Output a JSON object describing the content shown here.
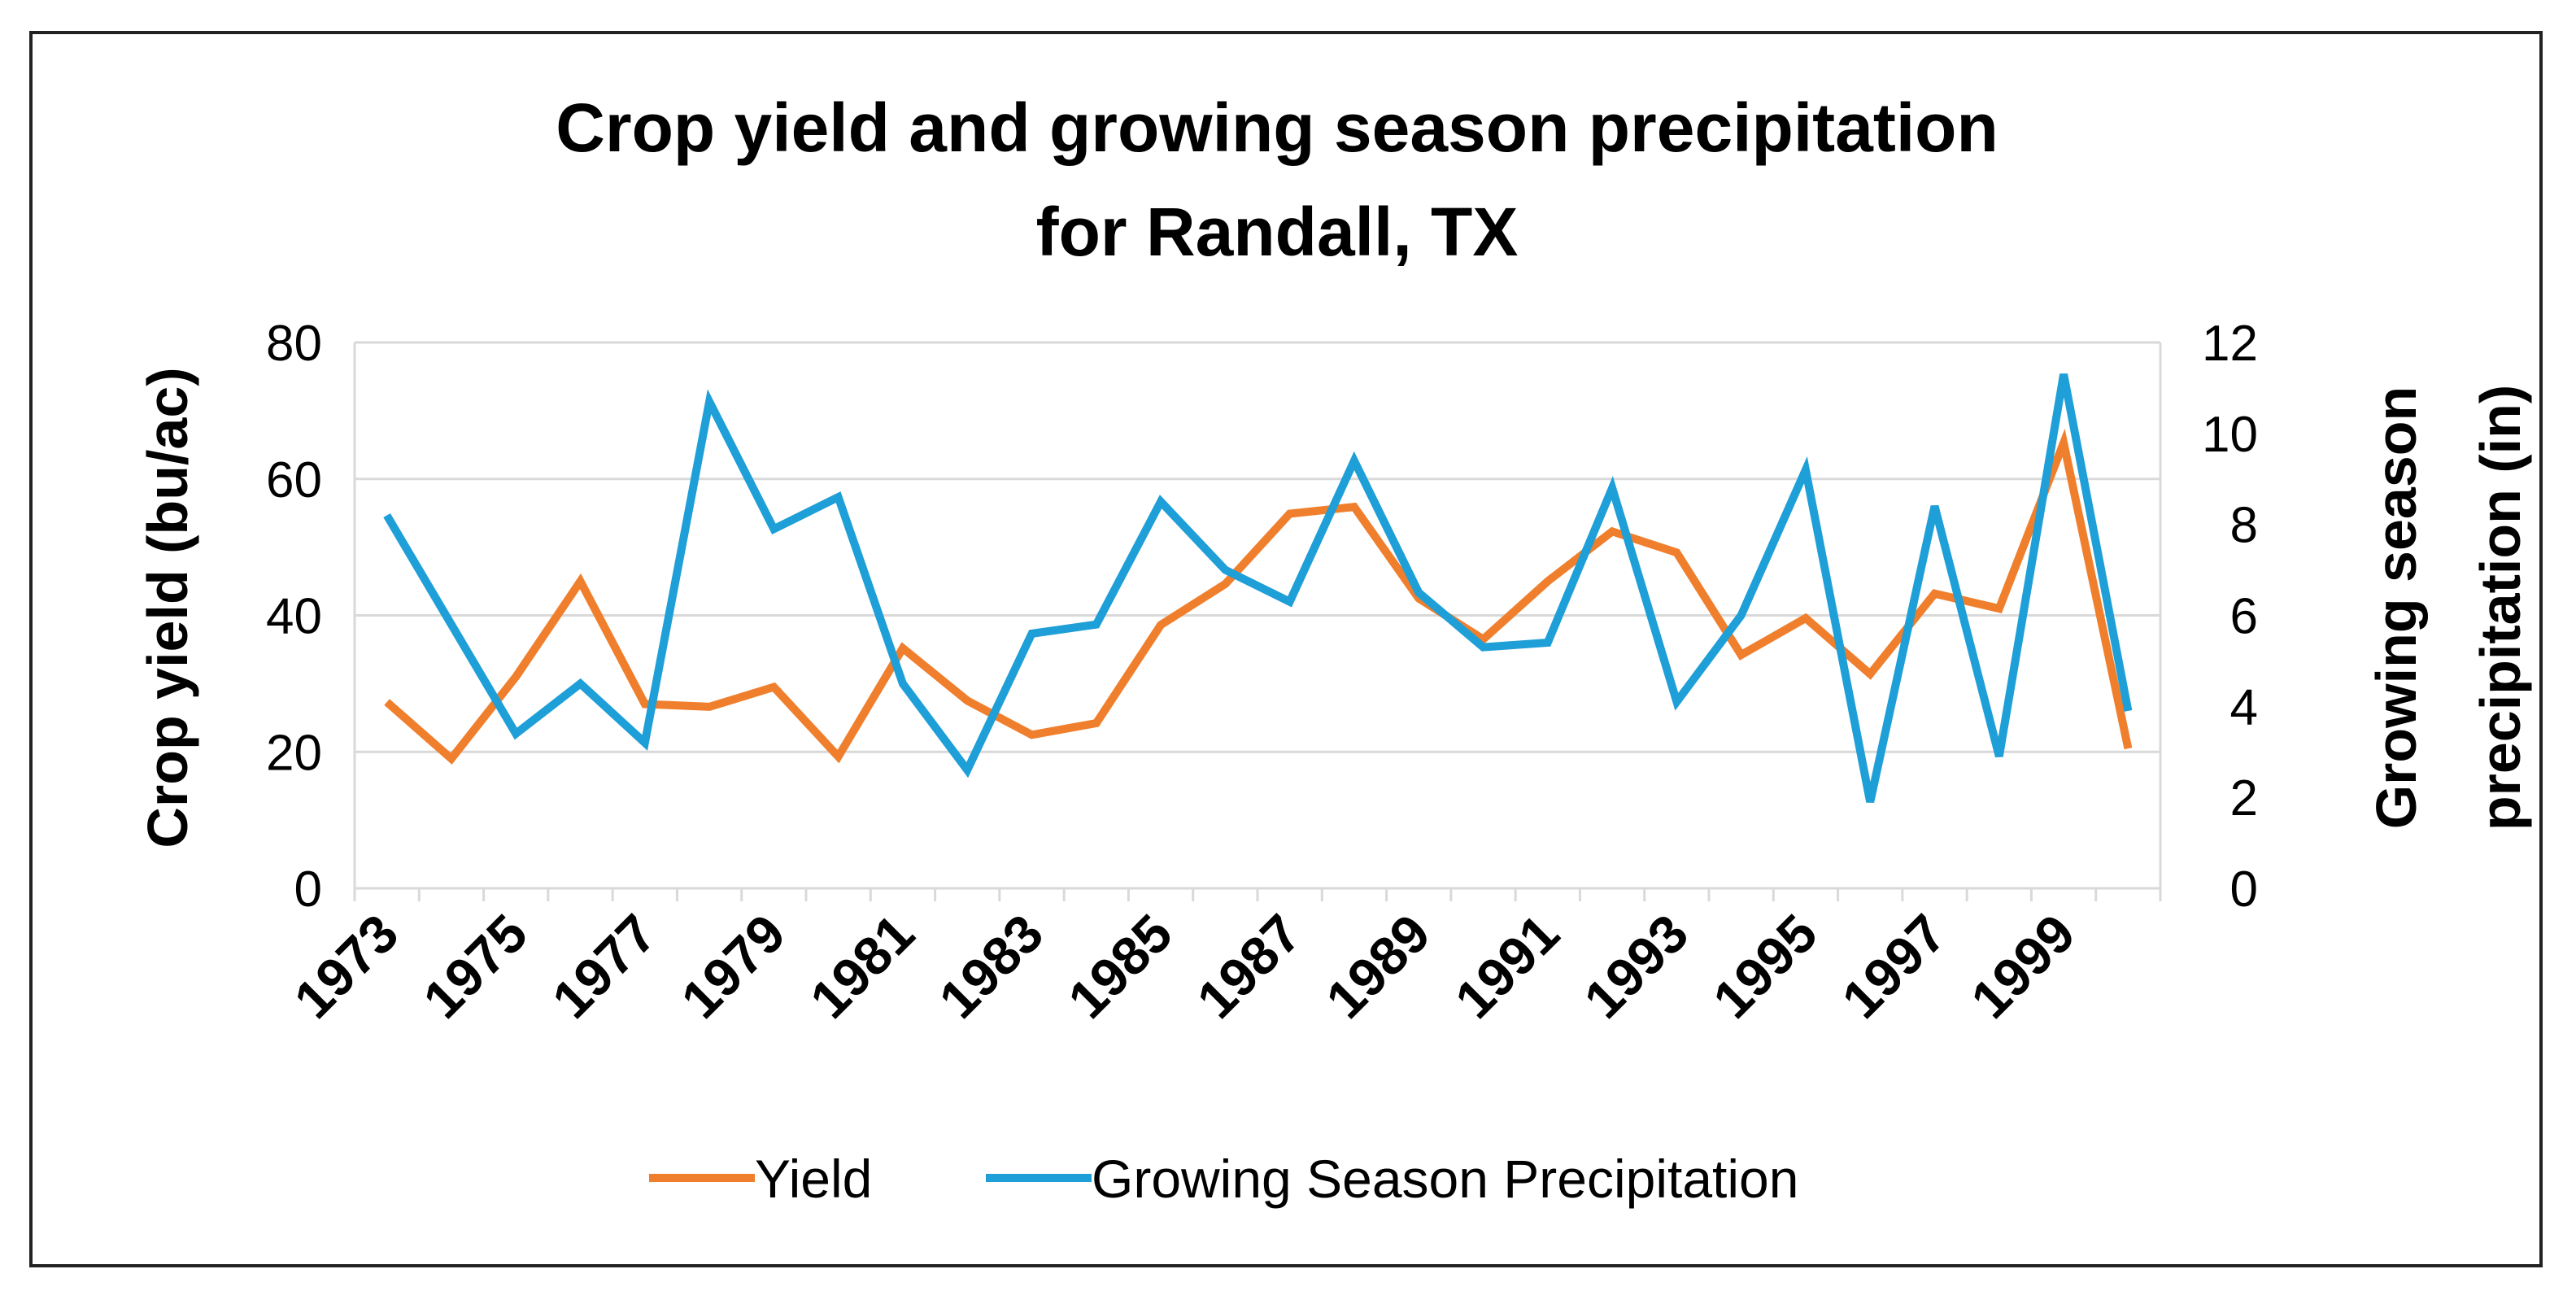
{
  "chart_data": {
    "type": "line",
    "title_lines": [
      "Crop yield and growing season precipitation",
      "for Randall, TX"
    ],
    "ylabel": "Crop yield (bu/ac)",
    "y2label_lines": [
      "Growing season",
      "precipitation (in)"
    ],
    "ylim": [
      0,
      80
    ],
    "y2lim": [
      0,
      12
    ],
    "yticks": [
      "0",
      "20",
      "40",
      "60",
      "80"
    ],
    "y2ticks": [
      "0",
      "2",
      "4",
      "6",
      "8",
      "10",
      "12"
    ],
    "x": [
      1973,
      1974,
      1975,
      1976,
      1977,
      1978,
      1979,
      1980,
      1981,
      1982,
      1983,
      1984,
      1985,
      1986,
      1987,
      1988,
      1989,
      1990,
      1991,
      1992,
      1993,
      1994,
      1995,
      1996,
      1997,
      1998,
      1999,
      2000
    ],
    "xtick_labels": [
      "1973",
      "1975",
      "1977",
      "1979",
      "1981",
      "1983",
      "1985",
      "1987",
      "1989",
      "1991",
      "1993",
      "1995",
      "1997",
      "1999"
    ],
    "grid": "horizontal",
    "legend_position": "bottom",
    "series": [
      {
        "name": "Yield",
        "axis": "left",
        "color": "#F07F2D",
        "values": [
          27.3,
          19,
          31,
          45,
          27,
          26.6,
          29.5,
          19.3,
          35.2,
          27.5,
          22.5,
          24.2,
          38.6,
          44.6,
          54.9,
          55.9,
          42.5,
          36.5,
          45,
          52.3,
          49.2,
          34.2,
          39.6,
          31.4,
          43.2,
          41,
          65.3,
          20.5
        ]
      },
      {
        "name": "Growing Season Precipitation",
        "axis": "right",
        "color": "#1E9FD7",
        "values": [
          8.2,
          5.8,
          3.4,
          4.5,
          3.2,
          10.7,
          7.9,
          8.6,
          4.5,
          2.6,
          5.6,
          5.8,
          8.5,
          7,
          6.3,
          9.4,
          6.5,
          5.3,
          5.4,
          8.8,
          4.1,
          6,
          9.2,
          1.9,
          8.4,
          2.9,
          11.3,
          3.9
        ]
      }
    ]
  }
}
